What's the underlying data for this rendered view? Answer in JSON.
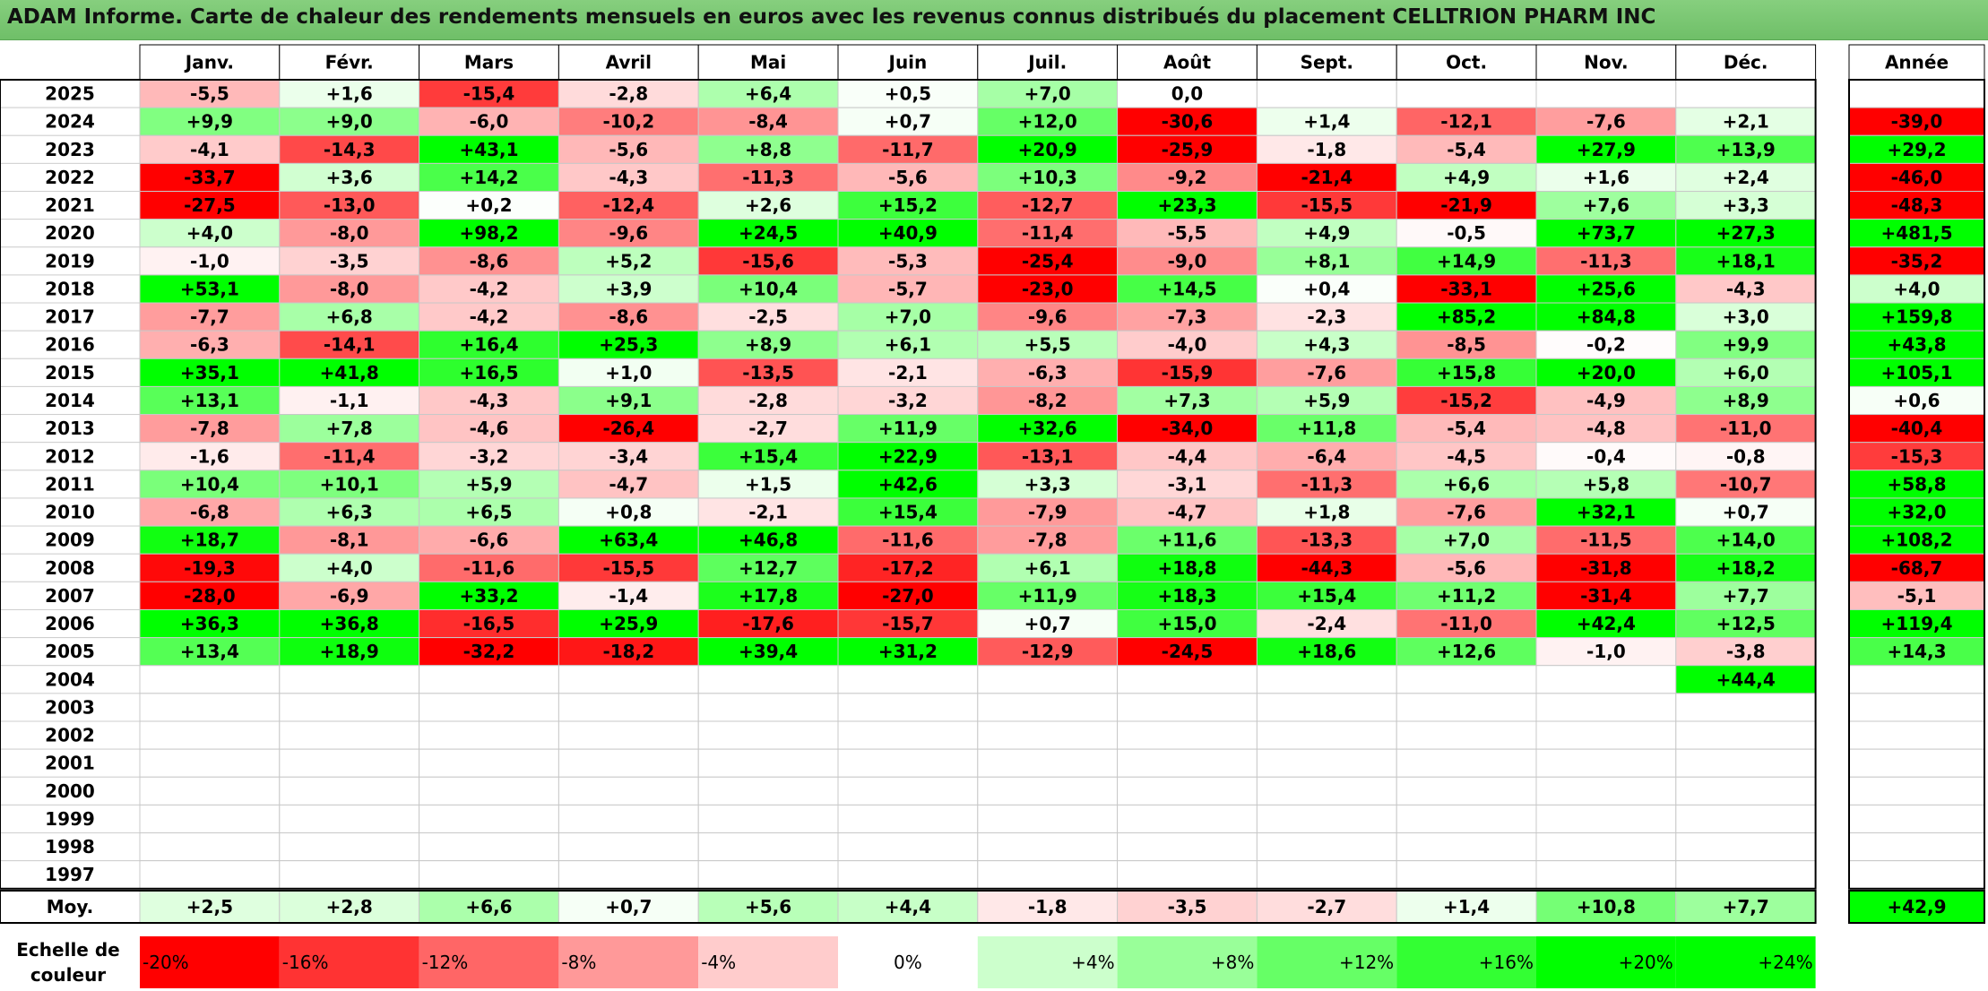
{
  "title": "ADAM Informe. Carte de chaleur des rendements mensuels en euros avec les revenus connus distribués du placement CELLTRION PHARM INC",
  "chart_data": {
    "type": "heatmap",
    "title": "ADAM Informe. Carte de chaleur des rendements mensuels en euros avec les revenus connus distribués du placement CELLTRION PHARM INC",
    "months": [
      "Janv.",
      "Févr.",
      "Mars",
      "Avril",
      "Mai",
      "Juin",
      "Juil.",
      "Août",
      "Sept.",
      "Oct.",
      "Nov.",
      "Déc."
    ],
    "year_header": "Année",
    "avg_label": "Moy.",
    "rows": [
      {
        "year": "2025",
        "months": [
          "-5,5",
          "+1,6",
          "-15,4",
          "-2,8",
          "+6,4",
          "+0,5",
          "+7,0",
          "0,0",
          "",
          "",
          "",
          ""
        ],
        "annual": ""
      },
      {
        "year": "2024",
        "months": [
          "+9,9",
          "+9,0",
          "-6,0",
          "-10,2",
          "-8,4",
          "+0,7",
          "+12,0",
          "-30,6",
          "+1,4",
          "-12,1",
          "-7,6",
          "+2,1"
        ],
        "annual": "-39,0"
      },
      {
        "year": "2023",
        "months": [
          "-4,1",
          "-14,3",
          "+43,1",
          "-5,6",
          "+8,8",
          "-11,7",
          "+20,9",
          "-25,9",
          "-1,8",
          "-5,4",
          "+27,9",
          "+13,9"
        ],
        "annual": "+29,2"
      },
      {
        "year": "2022",
        "months": [
          "-33,7",
          "+3,6",
          "+14,2",
          "-4,3",
          "-11,3",
          "-5,6",
          "+10,3",
          "-9,2",
          "-21,4",
          "+4,9",
          "+1,6",
          "+2,4"
        ],
        "annual": "-46,0"
      },
      {
        "year": "2021",
        "months": [
          "-27,5",
          "-13,0",
          "+0,2",
          "-12,4",
          "+2,6",
          "+15,2",
          "-12,7",
          "+23,3",
          "-15,5",
          "-21,9",
          "+7,6",
          "+3,3"
        ],
        "annual": "-48,3"
      },
      {
        "year": "2020",
        "months": [
          "+4,0",
          "-8,0",
          "+98,2",
          "-9,6",
          "+24,5",
          "+40,9",
          "-11,4",
          "-5,5",
          "+4,9",
          "-0,5",
          "+73,7",
          "+27,3"
        ],
        "annual": "+481,5"
      },
      {
        "year": "2019",
        "months": [
          "-1,0",
          "-3,5",
          "-8,6",
          "+5,2",
          "-15,6",
          "-5,3",
          "-25,4",
          "-9,0",
          "+8,1",
          "+14,9",
          "-11,3",
          "+18,1"
        ],
        "annual": "-35,2"
      },
      {
        "year": "2018",
        "months": [
          "+53,1",
          "-8,0",
          "-4,2",
          "+3,9",
          "+10,4",
          "-5,7",
          "-23,0",
          "+14,5",
          "+0,4",
          "-33,1",
          "+25,6",
          "-4,3"
        ],
        "annual": "+4,0"
      },
      {
        "year": "2017",
        "months": [
          "-7,7",
          "+6,8",
          "-4,2",
          "-8,6",
          "-2,5",
          "+7,0",
          "-9,6",
          "-7,3",
          "-2,3",
          "+85,2",
          "+84,8",
          "+3,0"
        ],
        "annual": "+159,8"
      },
      {
        "year": "2016",
        "months": [
          "-6,3",
          "-14,1",
          "+16,4",
          "+25,3",
          "+8,9",
          "+6,1",
          "+5,5",
          "-4,0",
          "+4,3",
          "-8,5",
          "-0,2",
          "+9,9"
        ],
        "annual": "+43,8"
      },
      {
        "year": "2015",
        "months": [
          "+35,1",
          "+41,8",
          "+16,5",
          "+1,0",
          "-13,5",
          "-2,1",
          "-6,3",
          "-15,9",
          "-7,6",
          "+15,8",
          "+20,0",
          "+6,0"
        ],
        "annual": "+105,1"
      },
      {
        "year": "2014",
        "months": [
          "+13,1",
          "-1,1",
          "-4,3",
          "+9,1",
          "-2,8",
          "-3,2",
          "-8,2",
          "+7,3",
          "+5,9",
          "-15,2",
          "-4,9",
          "+8,9"
        ],
        "annual": "+0,6"
      },
      {
        "year": "2013",
        "months": [
          "-7,8",
          "+7,8",
          "-4,6",
          "-26,4",
          "-2,7",
          "+11,9",
          "+32,6",
          "-34,0",
          "+11,8",
          "-5,4",
          "-4,8",
          "-11,0"
        ],
        "annual": "-40,4"
      },
      {
        "year": "2012",
        "months": [
          "-1,6",
          "-11,4",
          "-3,2",
          "-3,4",
          "+15,4",
          "+22,9",
          "-13,1",
          "-4,4",
          "-6,4",
          "-4,5",
          "-0,4",
          "-0,8"
        ],
        "annual": "-15,3"
      },
      {
        "year": "2011",
        "months": [
          "+10,4",
          "+10,1",
          "+5,9",
          "-4,7",
          "+1,5",
          "+42,6",
          "+3,3",
          "-3,1",
          "-11,3",
          "+6,6",
          "+5,8",
          "-10,7"
        ],
        "annual": "+58,8"
      },
      {
        "year": "2010",
        "months": [
          "-6,8",
          "+6,3",
          "+6,5",
          "+0,8",
          "-2,1",
          "+15,4",
          "-7,9",
          "-4,7",
          "+1,8",
          "-7,6",
          "+32,1",
          "+0,7"
        ],
        "annual": "+32,0"
      },
      {
        "year": "2009",
        "months": [
          "+18,7",
          "-8,1",
          "-6,6",
          "+63,4",
          "+46,8",
          "-11,6",
          "-7,8",
          "+11,6",
          "-13,3",
          "+7,0",
          "-11,5",
          "+14,0"
        ],
        "annual": "+108,2"
      },
      {
        "year": "2008",
        "months": [
          "-19,3",
          "+4,0",
          "-11,6",
          "-15,5",
          "+12,7",
          "-17,2",
          "+6,1",
          "+18,8",
          "-44,3",
          "-5,6",
          "-31,8",
          "+18,2"
        ],
        "annual": "-68,7"
      },
      {
        "year": "2007",
        "months": [
          "-28,0",
          "-6,9",
          "+33,2",
          "-1,4",
          "+17,8",
          "-27,0",
          "+11,9",
          "+18,3",
          "+15,4",
          "+11,2",
          "-31,4",
          "+7,7"
        ],
        "annual": "-5,1"
      },
      {
        "year": "2006",
        "months": [
          "+36,3",
          "+36,8",
          "-16,5",
          "+25,9",
          "-17,6",
          "-15,7",
          "+0,7",
          "+15,0",
          "-2,4",
          "-11,0",
          "+42,4",
          "+12,5"
        ],
        "annual": "+119,4"
      },
      {
        "year": "2005",
        "months": [
          "+13,4",
          "+18,9",
          "-32,2",
          "-18,2",
          "+39,4",
          "+31,2",
          "-12,9",
          "-24,5",
          "+18,6",
          "+12,6",
          "-1,0",
          "-3,8"
        ],
        "annual": "+14,3"
      },
      {
        "year": "2004",
        "months": [
          "",
          "",
          "",
          "",
          "",
          "",
          "",
          "",
          "",
          "",
          "",
          "+44,4"
        ],
        "annual": ""
      },
      {
        "year": "2003",
        "months": [
          "",
          "",
          "",
          "",
          "",
          "",
          "",
          "",
          "",
          "",
          "",
          ""
        ],
        "annual": ""
      },
      {
        "year": "2002",
        "months": [
          "",
          "",
          "",
          "",
          "",
          "",
          "",
          "",
          "",
          "",
          "",
          ""
        ],
        "annual": ""
      },
      {
        "year": "2001",
        "months": [
          "",
          "",
          "",
          "",
          "",
          "",
          "",
          "",
          "",
          "",
          "",
          ""
        ],
        "annual": ""
      },
      {
        "year": "2000",
        "months": [
          "",
          "",
          "",
          "",
          "",
          "",
          "",
          "",
          "",
          "",
          "",
          ""
        ],
        "annual": ""
      },
      {
        "year": "1999",
        "months": [
          "",
          "",
          "",
          "",
          "",
          "",
          "",
          "",
          "",
          "",
          "",
          ""
        ],
        "annual": ""
      },
      {
        "year": "1998",
        "months": [
          "",
          "",
          "",
          "",
          "",
          "",
          "",
          "",
          "",
          "",
          "",
          ""
        ],
        "annual": ""
      },
      {
        "year": "1997",
        "months": [
          "",
          "",
          "",
          "",
          "",
          "",
          "",
          "",
          "",
          "",
          "",
          ""
        ],
        "annual": ""
      }
    ],
    "averages": [
      "+2,5",
      "+2,8",
      "+6,6",
      "+0,7",
      "+5,6",
      "+4,4",
      "-1,8",
      "-3,5",
      "-2,7",
      "+1,4",
      "+10,8",
      "+7,7"
    ],
    "average_annual": "+42,9",
    "scale_label": [
      "Echelle de",
      "couleur"
    ],
    "scale": [
      {
        "label": "-20%",
        "color": "#ff0000"
      },
      {
        "label": "-16%",
        "color": "#ff3333"
      },
      {
        "label": "-12%",
        "color": "#ff6666"
      },
      {
        "label": "-8%",
        "color": "#ff9999"
      },
      {
        "label": "-4%",
        "color": "#ffcccc"
      },
      {
        "label": "0%",
        "color": "#ffffff"
      },
      {
        "label": "+4%",
        "color": "#ccffcc"
      },
      {
        "label": "+8%",
        "color": "#99ff99"
      },
      {
        "label": "+12%",
        "color": "#66ff66"
      },
      {
        "label": "+16%",
        "color": "#33ff33"
      },
      {
        "label": "+20%",
        "color": "#00ff00"
      },
      {
        "label": "+24%",
        "color": "#00ff00"
      }
    ]
  }
}
